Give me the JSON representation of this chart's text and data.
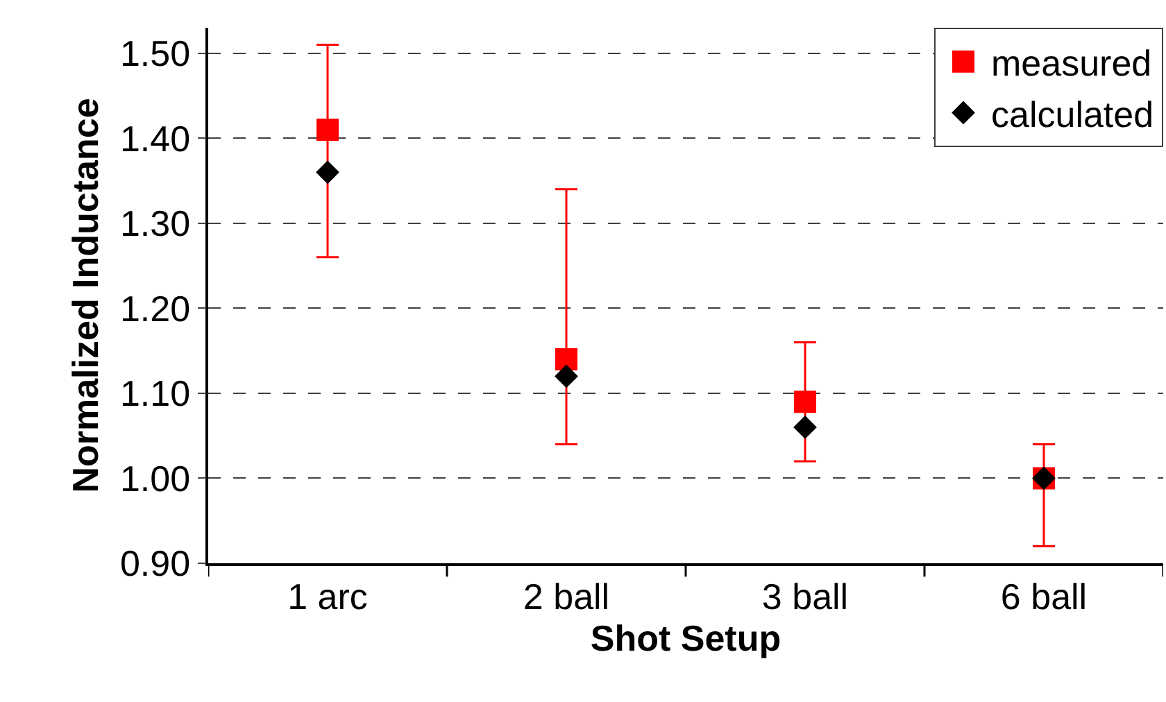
{
  "chart_data": {
    "type": "scatter",
    "xlabel": "Shot Setup",
    "ylabel": "Normalized Inductance",
    "categories": [
      "1 arc",
      "2 ball",
      "3 ball",
      "6 ball"
    ],
    "series": [
      {
        "name": "measured",
        "color": "#ff0000",
        "marker": "square",
        "values": [
          1.41,
          1.14,
          1.09,
          1.0
        ],
        "errors": [
          [
            1.26,
            1.51
          ],
          [
            1.04,
            1.34
          ],
          [
            1.02,
            1.16
          ],
          [
            0.92,
            1.04
          ]
        ]
      },
      {
        "name": "calculated",
        "color": "#000000",
        "marker": "diamond",
        "values": [
          1.36,
          1.12,
          1.06,
          1.0
        ]
      }
    ],
    "ylim": [
      0.9,
      1.53
    ],
    "yticks": [
      {
        "value": 0.9,
        "label": "0.90"
      },
      {
        "value": 1.0,
        "label": "1.00"
      },
      {
        "value": 1.1,
        "label": "1.10"
      },
      {
        "value": 1.2,
        "label": "1.20"
      },
      {
        "value": 1.3,
        "label": "1.30"
      },
      {
        "value": 1.4,
        "label": "1.40"
      },
      {
        "value": 1.5,
        "label": "1.50"
      }
    ],
    "grid": "y",
    "legend": "top right"
  }
}
